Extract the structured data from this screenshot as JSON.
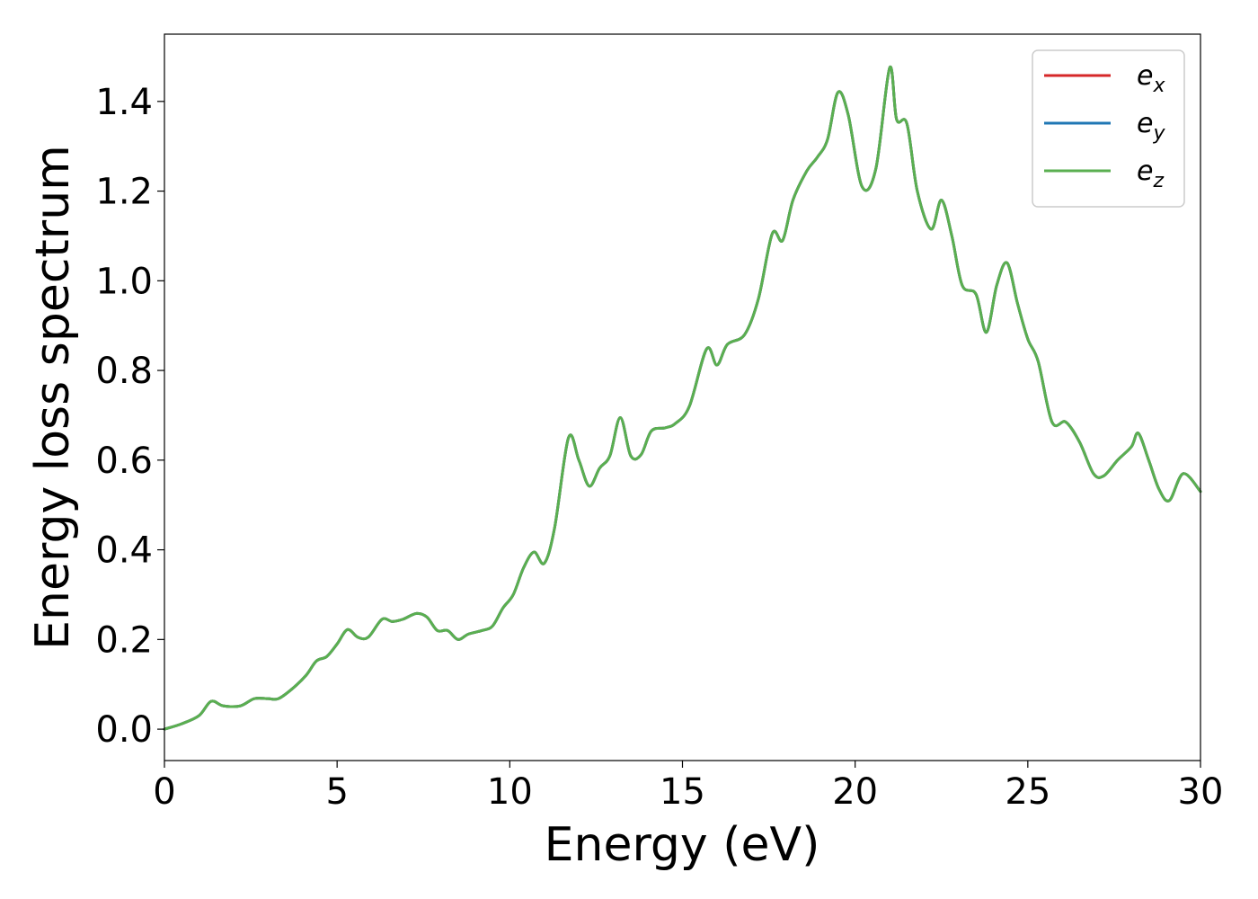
{
  "chart_data": {
    "type": "line",
    "title": "",
    "xlabel": "Energy (eV)",
    "ylabel": "Energy loss spectrum",
    "xlim": [
      0,
      30
    ],
    "ylim": [
      -0.07,
      1.55
    ],
    "xticks": [
      0,
      5,
      10,
      15,
      20,
      25,
      30
    ],
    "xtick_labels": [
      "0",
      "5",
      "10",
      "15",
      "20",
      "25",
      "30"
    ],
    "yticks": [
      0.0,
      0.2,
      0.4,
      0.6,
      0.8,
      1.0,
      1.2,
      1.4
    ],
    "ytick_labels": [
      "0.0",
      "0.2",
      "0.4",
      "0.6",
      "0.8",
      "1.0",
      "1.2",
      "1.4"
    ],
    "grid": false,
    "legend_position": "top-right",
    "x": [
      0,
      0.5,
      1.0,
      1.35,
      1.7,
      2.2,
      2.6,
      3.0,
      3.3,
      3.7,
      4.1,
      4.4,
      4.7,
      5.0,
      5.3,
      5.6,
      5.9,
      6.3,
      6.6,
      6.9,
      7.3,
      7.6,
      7.9,
      8.2,
      8.5,
      8.8,
      9.2,
      9.5,
      9.8,
      10.1,
      10.4,
      10.7,
      11.0,
      11.3,
      11.7,
      12.0,
      12.3,
      12.6,
      12.9,
      13.2,
      13.5,
      13.8,
      14.1,
      14.5,
      14.8,
      15.2,
      15.7,
      16.0,
      16.3,
      16.8,
      17.2,
      17.6,
      17.9,
      18.2,
      18.6,
      18.9,
      19.2,
      19.5,
      19.8,
      20.2,
      20.6,
      21.0,
      21.2,
      21.5,
      21.8,
      22.2,
      22.5,
      22.8,
      23.1,
      23.5,
      23.8,
      24.1,
      24.4,
      24.7,
      25.0,
      25.3,
      25.7,
      26.1,
      26.5,
      26.9,
      27.2,
      27.6,
      28.0,
      28.2,
      28.5,
      28.8,
      29.1,
      29.5,
      30.0
    ],
    "series": [
      {
        "name": "ex",
        "color": "#d62728",
        "values": [
          0.0,
          0.012,
          0.03,
          0.062,
          0.052,
          0.052,
          0.068,
          0.068,
          0.068,
          0.09,
          0.12,
          0.152,
          0.162,
          0.19,
          0.222,
          0.205,
          0.205,
          0.245,
          0.24,
          0.245,
          0.258,
          0.25,
          0.22,
          0.22,
          0.2,
          0.212,
          0.22,
          0.23,
          0.27,
          0.3,
          0.36,
          0.395,
          0.37,
          0.45,
          0.65,
          0.6,
          0.542,
          0.582,
          0.61,
          0.695,
          0.61,
          0.612,
          0.665,
          0.672,
          0.682,
          0.72,
          0.848,
          0.812,
          0.858,
          0.88,
          0.96,
          1.105,
          1.09,
          1.18,
          1.245,
          1.275,
          1.315,
          1.42,
          1.37,
          1.21,
          1.25,
          1.475,
          1.36,
          1.35,
          1.2,
          1.115,
          1.18,
          1.1,
          0.99,
          0.97,
          0.885,
          0.99,
          1.04,
          0.95,
          0.87,
          0.82,
          0.685,
          0.685,
          0.64,
          0.57,
          0.565,
          0.6,
          0.63,
          0.66,
          0.6,
          0.535,
          0.51,
          0.57,
          0.53
        ]
      },
      {
        "name": "ey",
        "color": "#1f77b4",
        "values": [
          0.0,
          0.012,
          0.03,
          0.062,
          0.052,
          0.052,
          0.068,
          0.068,
          0.068,
          0.09,
          0.12,
          0.152,
          0.162,
          0.19,
          0.222,
          0.205,
          0.205,
          0.245,
          0.24,
          0.245,
          0.258,
          0.25,
          0.22,
          0.22,
          0.2,
          0.212,
          0.22,
          0.23,
          0.27,
          0.3,
          0.36,
          0.395,
          0.37,
          0.45,
          0.65,
          0.6,
          0.542,
          0.582,
          0.61,
          0.695,
          0.61,
          0.612,
          0.665,
          0.672,
          0.682,
          0.72,
          0.848,
          0.812,
          0.858,
          0.88,
          0.96,
          1.105,
          1.09,
          1.18,
          1.245,
          1.275,
          1.315,
          1.42,
          1.37,
          1.21,
          1.25,
          1.475,
          1.36,
          1.35,
          1.2,
          1.115,
          1.18,
          1.1,
          0.99,
          0.97,
          0.885,
          0.99,
          1.04,
          0.95,
          0.87,
          0.82,
          0.685,
          0.685,
          0.64,
          0.57,
          0.565,
          0.6,
          0.63,
          0.66,
          0.6,
          0.535,
          0.51,
          0.57,
          0.53
        ]
      },
      {
        "name": "ez",
        "color": "#5aaf50",
        "values": [
          0.0,
          0.012,
          0.03,
          0.062,
          0.052,
          0.052,
          0.068,
          0.068,
          0.068,
          0.09,
          0.12,
          0.152,
          0.162,
          0.19,
          0.222,
          0.205,
          0.205,
          0.245,
          0.24,
          0.245,
          0.258,
          0.25,
          0.22,
          0.22,
          0.2,
          0.212,
          0.22,
          0.23,
          0.27,
          0.3,
          0.36,
          0.395,
          0.37,
          0.45,
          0.65,
          0.6,
          0.542,
          0.582,
          0.61,
          0.695,
          0.61,
          0.612,
          0.665,
          0.672,
          0.682,
          0.72,
          0.848,
          0.812,
          0.858,
          0.88,
          0.96,
          1.105,
          1.09,
          1.18,
          1.245,
          1.275,
          1.315,
          1.42,
          1.37,
          1.21,
          1.25,
          1.475,
          1.36,
          1.35,
          1.2,
          1.115,
          1.18,
          1.1,
          0.99,
          0.97,
          0.885,
          0.99,
          1.04,
          0.95,
          0.87,
          0.82,
          0.685,
          0.685,
          0.64,
          0.57,
          0.565,
          0.6,
          0.63,
          0.66,
          0.6,
          0.535,
          0.51,
          0.57,
          0.53
        ]
      }
    ],
    "legend": [
      {
        "base": "e",
        "sub": "x",
        "color": "#d62728"
      },
      {
        "base": "e",
        "sub": "y",
        "color": "#1f77b4"
      },
      {
        "base": "e",
        "sub": "z",
        "color": "#5aaf50"
      }
    ]
  }
}
